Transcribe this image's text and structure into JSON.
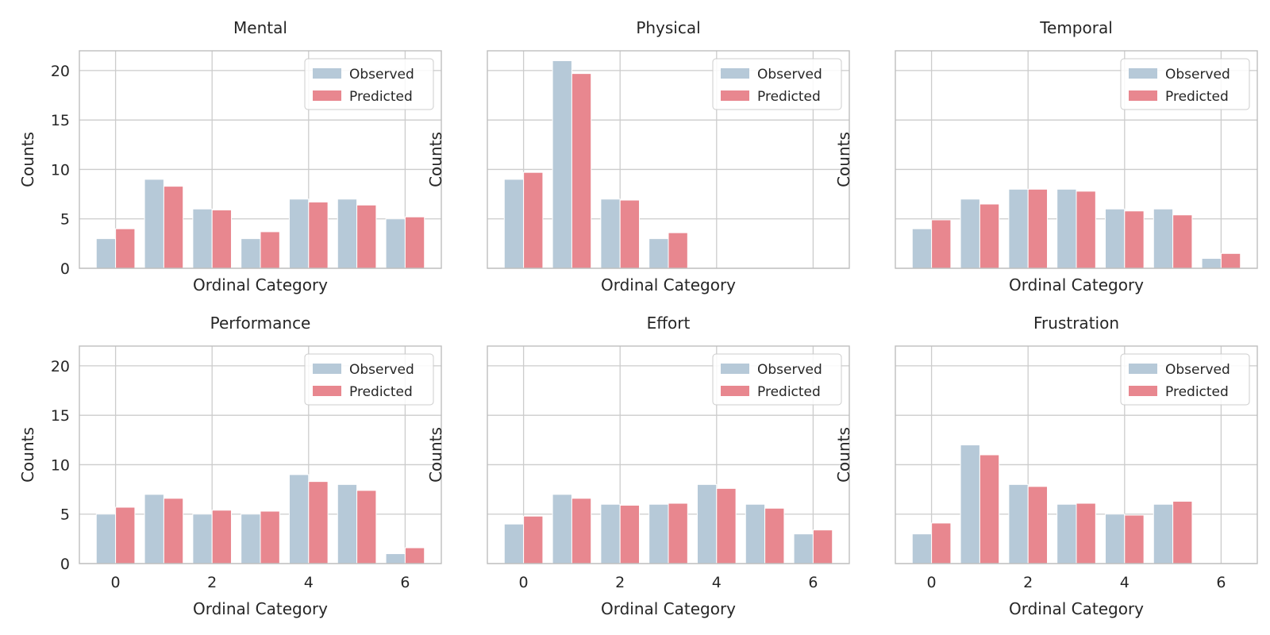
{
  "colors": {
    "observed": "#b6c9d8",
    "predicted": "#e8878f",
    "grid": "#cccccc",
    "frame": "#bfbfbf"
  },
  "chart_data": [
    {
      "type": "bar",
      "title": "Mental",
      "xlabel": "Ordinal Category",
      "ylabel": "Counts",
      "x": [
        0,
        1,
        2,
        3,
        4,
        5,
        6
      ],
      "xticks": [
        "0",
        "2",
        "4",
        "6"
      ],
      "show_xticks": false,
      "show_yticks": true,
      "yticks": [
        "0",
        "5",
        "10",
        "15",
        "20"
      ],
      "ylim": [
        0,
        22
      ],
      "legend": "top-right",
      "series": [
        {
          "name": "Observed",
          "values": [
            3,
            9,
            6,
            3,
            7,
            7,
            5
          ]
        },
        {
          "name": "Predicted",
          "values": [
            4.0,
            8.3,
            5.9,
            3.7,
            6.7,
            6.4,
            5.2
          ]
        }
      ]
    },
    {
      "type": "bar",
      "title": "Physical",
      "xlabel": "Ordinal Category",
      "ylabel": "Counts",
      "x": [
        0,
        1,
        2,
        3,
        4,
        5,
        6
      ],
      "xticks": [
        "0",
        "2",
        "4",
        "6"
      ],
      "show_xticks": false,
      "show_yticks": false,
      "yticks": [
        "0",
        "5",
        "10",
        "15",
        "20"
      ],
      "ylim": [
        0,
        22
      ],
      "legend": "top-right",
      "series": [
        {
          "name": "Observed",
          "values": [
            9,
            21,
            7,
            3,
            0,
            0,
            0
          ]
        },
        {
          "name": "Predicted",
          "values": [
            9.7,
            19.7,
            6.9,
            3.6,
            0,
            0,
            0
          ]
        }
      ]
    },
    {
      "type": "bar",
      "title": "Temporal",
      "xlabel": "Ordinal Category",
      "ylabel": "Counts",
      "x": [
        0,
        1,
        2,
        3,
        4,
        5,
        6
      ],
      "xticks": [
        "0",
        "2",
        "4",
        "6"
      ],
      "show_xticks": false,
      "show_yticks": false,
      "yticks": [
        "0",
        "5",
        "10",
        "15",
        "20"
      ],
      "ylim": [
        0,
        22
      ],
      "legend": "top-right",
      "series": [
        {
          "name": "Observed",
          "values": [
            4,
            7,
            8,
            8,
            6,
            6,
            1
          ]
        },
        {
          "name": "Predicted",
          "values": [
            4.9,
            6.5,
            8.0,
            7.8,
            5.8,
            5.4,
            1.5
          ]
        }
      ]
    },
    {
      "type": "bar",
      "title": "Performance",
      "xlabel": "Ordinal Category",
      "ylabel": "Counts",
      "x": [
        0,
        1,
        2,
        3,
        4,
        5,
        6
      ],
      "xticks": [
        "0",
        "2",
        "4",
        "6"
      ],
      "show_xticks": true,
      "show_yticks": true,
      "yticks": [
        "0",
        "5",
        "10",
        "15",
        "20"
      ],
      "ylim": [
        0,
        22
      ],
      "legend": "top-right",
      "series": [
        {
          "name": "Observed",
          "values": [
            5,
            7,
            5,
            5,
            9,
            8,
            1
          ]
        },
        {
          "name": "Predicted",
          "values": [
            5.7,
            6.6,
            5.4,
            5.3,
            8.3,
            7.4,
            1.6
          ]
        }
      ]
    },
    {
      "type": "bar",
      "title": "Effort",
      "xlabel": "Ordinal Category",
      "ylabel": "Counts",
      "x": [
        0,
        1,
        2,
        3,
        4,
        5,
        6
      ],
      "xticks": [
        "0",
        "2",
        "4",
        "6"
      ],
      "show_xticks": true,
      "show_yticks": false,
      "yticks": [
        "0",
        "5",
        "10",
        "15",
        "20"
      ],
      "ylim": [
        0,
        22
      ],
      "legend": "top-right",
      "series": [
        {
          "name": "Observed",
          "values": [
            4,
            7,
            6,
            6,
            8,
            6,
            3
          ]
        },
        {
          "name": "Predicted",
          "values": [
            4.8,
            6.6,
            5.9,
            6.1,
            7.6,
            5.6,
            3.4
          ]
        }
      ]
    },
    {
      "type": "bar",
      "title": "Frustration",
      "xlabel": "Ordinal Category",
      "ylabel": "Counts",
      "x": [
        0,
        1,
        2,
        3,
        4,
        5,
        6
      ],
      "xticks": [
        "0",
        "2",
        "4",
        "6"
      ],
      "show_xticks": true,
      "show_yticks": false,
      "yticks": [
        "0",
        "5",
        "10",
        "15",
        "20"
      ],
      "ylim": [
        0,
        22
      ],
      "legend": "top-right",
      "series": [
        {
          "name": "Observed",
          "values": [
            3,
            12,
            8,
            6,
            5,
            6,
            0
          ]
        },
        {
          "name": "Predicted",
          "values": [
            4.1,
            11.0,
            7.8,
            6.1,
            4.9,
            6.3,
            0
          ]
        }
      ]
    }
  ]
}
